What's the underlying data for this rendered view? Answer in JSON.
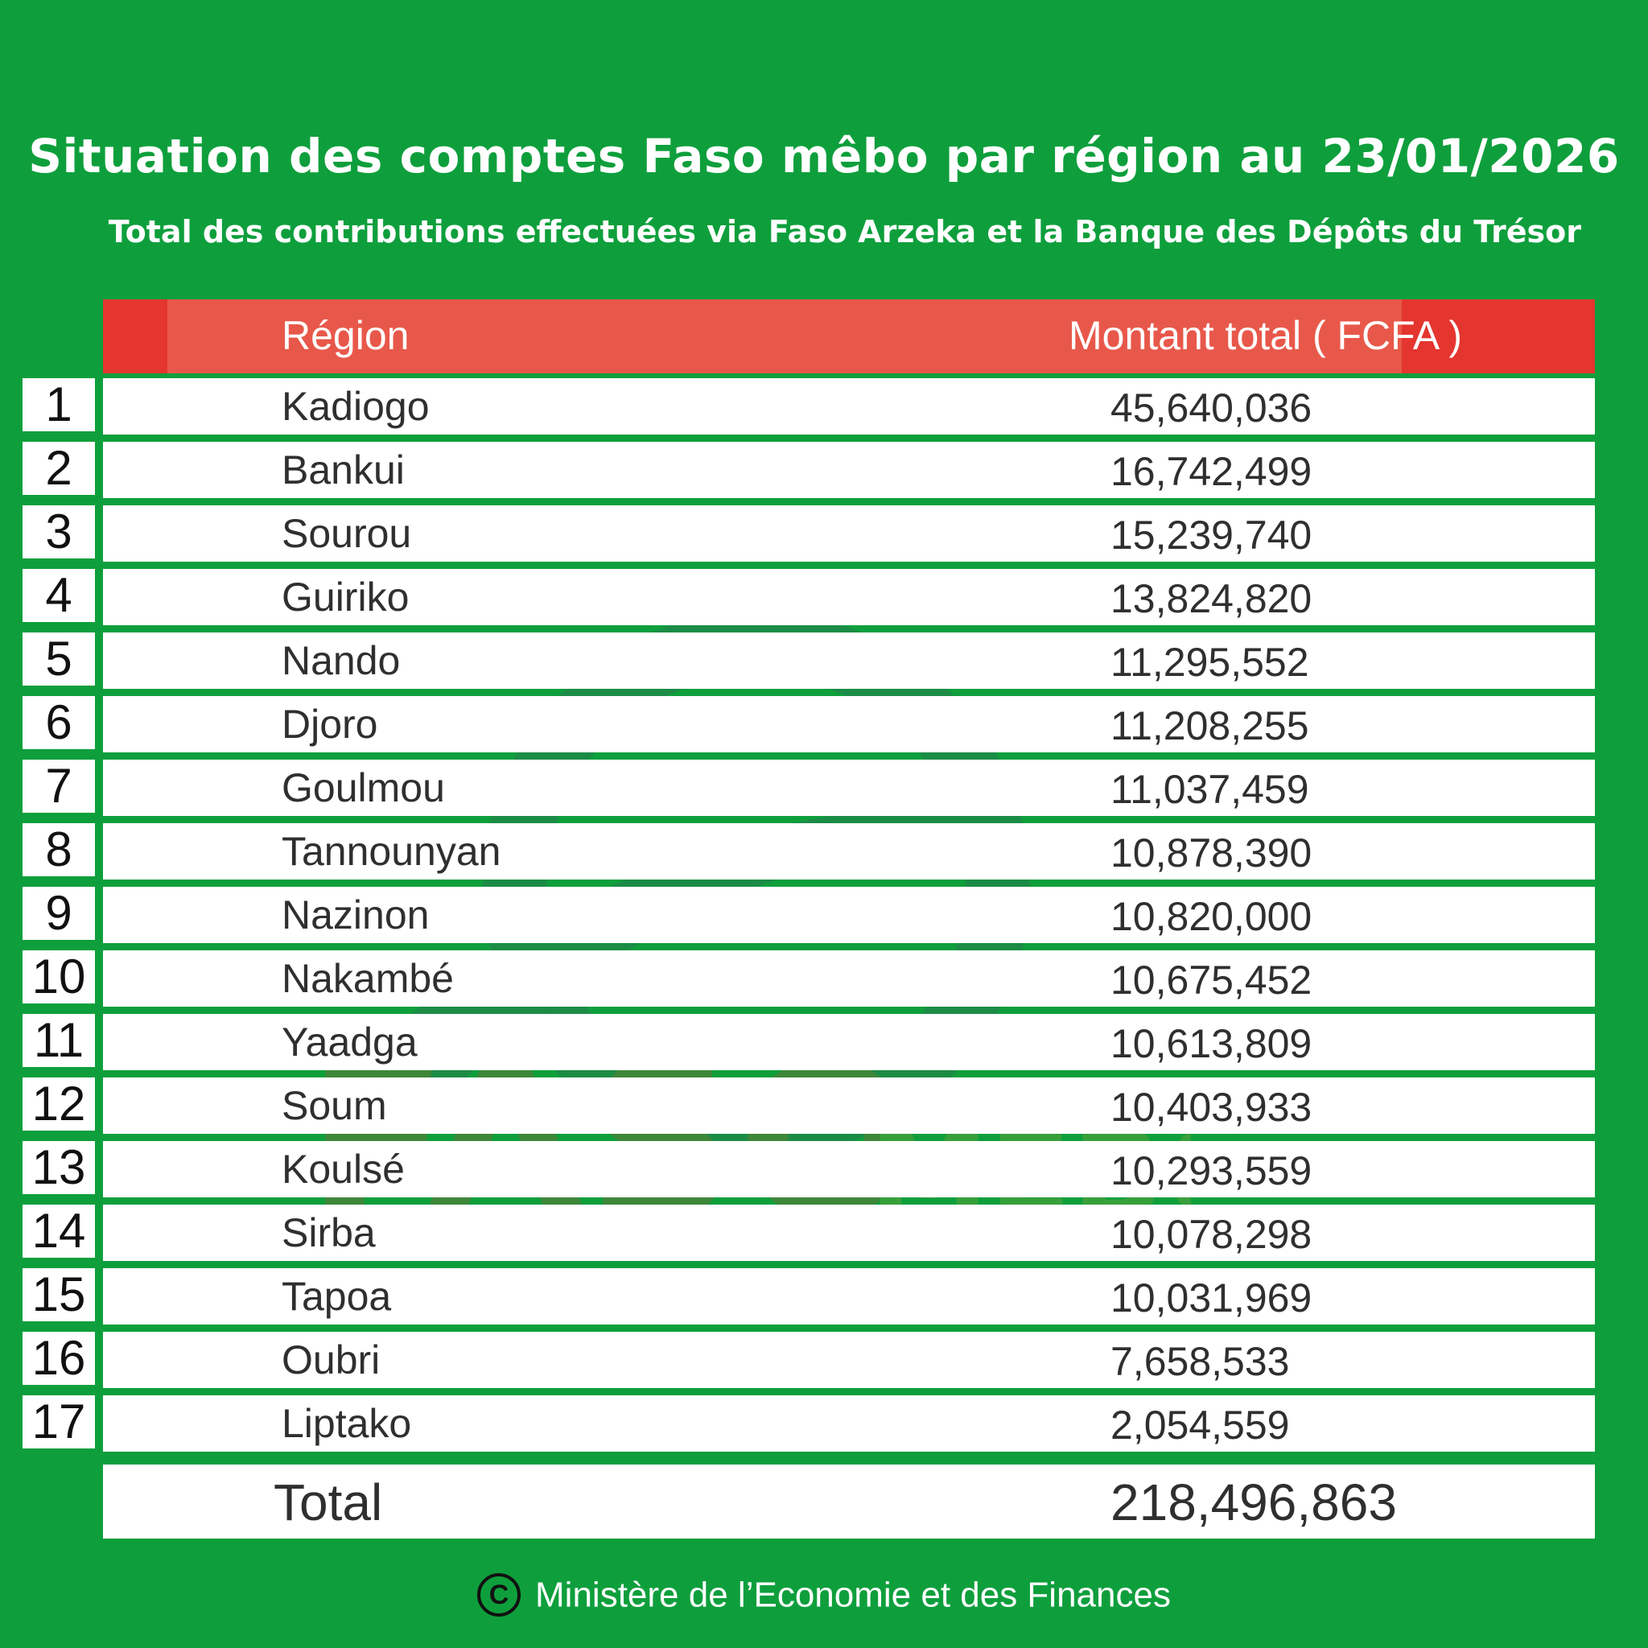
{
  "title": "Situation des comptes Faso mêbo par région au 23/01/2026",
  "subtitle": "Total des contributions effectuées via Faso Arzeka et la Banque des Dépôts du Trésor",
  "table": {
    "header_region": "Région",
    "header_amount": "Montant total ( FCFA )",
    "rows": [
      {
        "num": "1",
        "region": "Kadiogo",
        "amount": "45,640,036"
      },
      {
        "num": "2",
        "region": "Bankui",
        "amount": "16,742,499"
      },
      {
        "num": "3",
        "region": "Sourou",
        "amount": "15,239,740"
      },
      {
        "num": "4",
        "region": "Guiriko",
        "amount": "13,824,820"
      },
      {
        "num": "5",
        "region": "Nando",
        "amount": "11,295,552"
      },
      {
        "num": "6",
        "region": "Djoro",
        "amount": "11,208,255"
      },
      {
        "num": "7",
        "region": "Goulmou",
        "amount": "11,037,459"
      },
      {
        "num": "8",
        "region": "Tannounyan",
        "amount": "10,878,390"
      },
      {
        "num": "9",
        "region": "Nazinon",
        "amount": "10,820,000"
      },
      {
        "num": "10",
        "region": "Nakambé",
        "amount": "10,675,452"
      },
      {
        "num": "11",
        "region": "Yaadga",
        "amount": "10,613,809"
      },
      {
        "num": "12",
        "region": "Soum",
        "amount": "10,403,933"
      },
      {
        "num": "13",
        "region": "Koulsé",
        "amount": "10,293,559"
      },
      {
        "num": "14",
        "region": "Sirba",
        "amount": "10,078,298"
      },
      {
        "num": "15",
        "region": "Tapoa",
        "amount": "10,031,969"
      },
      {
        "num": "16",
        "region": "Oubri",
        "amount": "7,658,533"
      },
      {
        "num": "17",
        "region": "Liptako",
        "amount": "2,054,559"
      }
    ],
    "total_label": "Total",
    "total_amount": "218,496,863"
  },
  "watermark": {
    "text_faso": "FASO",
    "text_mebo": "MÊBO"
  },
  "footer": {
    "copyright_symbol": "C",
    "text": "Ministère de l’Economie et des Finances"
  },
  "colors": {
    "background": "#0e9f3c",
    "header": "#e4352f",
    "row": "#ffffff"
  }
}
